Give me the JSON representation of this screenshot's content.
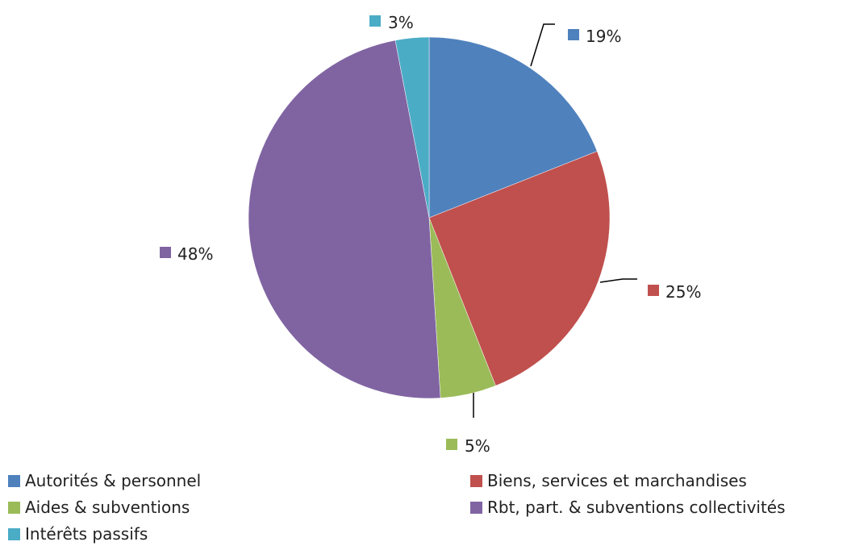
{
  "chart_data": {
    "type": "pie",
    "categories": [
      "Autorités & personnel",
      "Biens, services et marchandises",
      "Aides & subventions",
      "Rbt, part. & subventions collectivités",
      "Intérêts passifs"
    ],
    "values": [
      19,
      25,
      5,
      48,
      3
    ],
    "data_labels": [
      "19%",
      "25%",
      "5%",
      "48%",
      "3%"
    ],
    "colors": [
      "#4F81BD",
      "#C0504D",
      "#9BBB59",
      "#8064A2",
      "#4BACC6"
    ],
    "legend_position": "bottom",
    "start_angle": "top, clockwise"
  }
}
